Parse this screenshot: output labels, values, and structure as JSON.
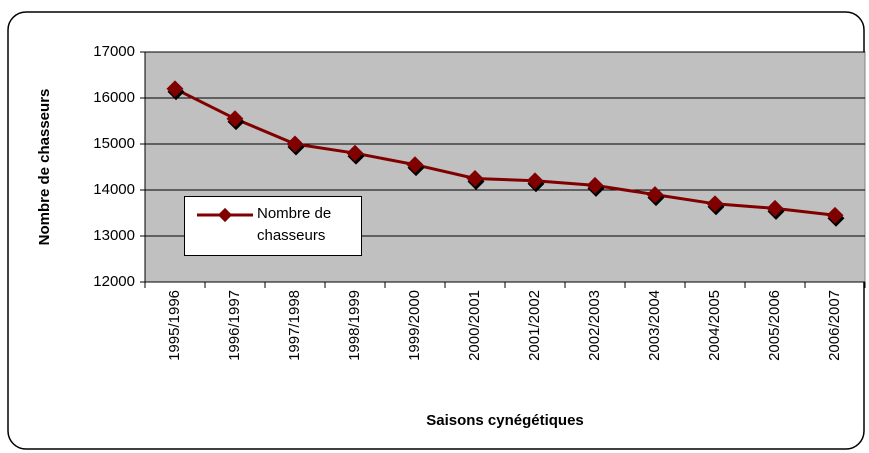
{
  "chart_data": {
    "type": "line",
    "x_label": "Saisons cynégétiques",
    "y_label": "Nombre de chasseurs",
    "categories": [
      "1995/1996",
      "1996/1997",
      "1997/1998",
      "1998/1999",
      "1999/2000",
      "2000/2001",
      "2001/2002",
      "2002/2003",
      "2003/2004",
      "2004/2005",
      "2005/2006",
      "2006/2007"
    ],
    "series": [
      {
        "name": "Nombre de chasseurs",
        "color": "#800000",
        "values": [
          16200,
          15550,
          15000,
          14800,
          14550,
          14250,
          14200,
          14100,
          13900,
          13700,
          13600,
          13450
        ]
      }
    ],
    "ylim": [
      12000,
      17000
    ],
    "yticks": [
      12000,
      13000,
      14000,
      15000,
      16000,
      17000
    ],
    "grid": true,
    "legend": "left"
  }
}
